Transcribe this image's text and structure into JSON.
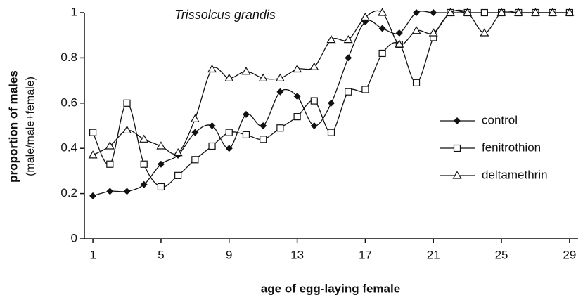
{
  "chart_data": {
    "type": "line",
    "title": "Trissolcus grandis",
    "y_label": "proportion of males",
    "y_sublabel": "(male/male+female)",
    "x_label": "age of egg-laying female",
    "x": [
      1,
      2,
      3,
      4,
      5,
      6,
      7,
      8,
      9,
      10,
      11,
      12,
      13,
      14,
      15,
      16,
      17,
      18,
      19,
      20,
      21,
      22,
      23,
      24,
      25,
      26,
      27,
      28,
      29
    ],
    "series": [
      {
        "name": "control",
        "color": "#111111",
        "marker": "diamond",
        "values": [
          0.19,
          0.21,
          0.21,
          0.24,
          0.33,
          0.37,
          0.47,
          0.5,
          0.4,
          0.55,
          0.5,
          0.65,
          0.63,
          0.5,
          0.6,
          0.8,
          0.96,
          0.93,
          0.91,
          1.0,
          1.0,
          1.0,
          1.0,
          1.0,
          1.0,
          1.0,
          1.0,
          1.0,
          1.0
        ]
      },
      {
        "name": "fenitrothion",
        "color": "#111111",
        "marker": "square",
        "values": [
          0.47,
          0.33,
          0.6,
          0.33,
          0.23,
          0.28,
          0.35,
          0.41,
          0.47,
          0.46,
          0.44,
          0.49,
          0.54,
          0.61,
          0.47,
          0.65,
          0.66,
          0.82,
          0.86,
          0.69,
          0.89,
          1.0,
          1.0,
          1.0,
          1.0,
          1.0,
          1.0,
          1.0,
          1.0
        ]
      },
      {
        "name": "deltamethrin",
        "color": "#111111",
        "marker": "triangle",
        "values": [
          0.37,
          0.41,
          0.48,
          0.44,
          0.41,
          0.38,
          0.53,
          0.75,
          0.71,
          0.74,
          0.71,
          0.71,
          0.75,
          0.76,
          0.88,
          0.88,
          0.98,
          1.0,
          0.86,
          0.92,
          0.91,
          1.0,
          1.0,
          0.91,
          1.0,
          1.0,
          1.0,
          1.0,
          1.0
        ]
      }
    ],
    "xlim": [
      0.5,
      29.5
    ],
    "ylim": [
      0,
      1
    ],
    "xticks": [
      1,
      5,
      9,
      13,
      17,
      21,
      25,
      29
    ],
    "yticks": [
      0,
      0.2,
      0.4,
      0.6,
      0.8,
      1
    ],
    "grid": false,
    "legend": "right"
  }
}
